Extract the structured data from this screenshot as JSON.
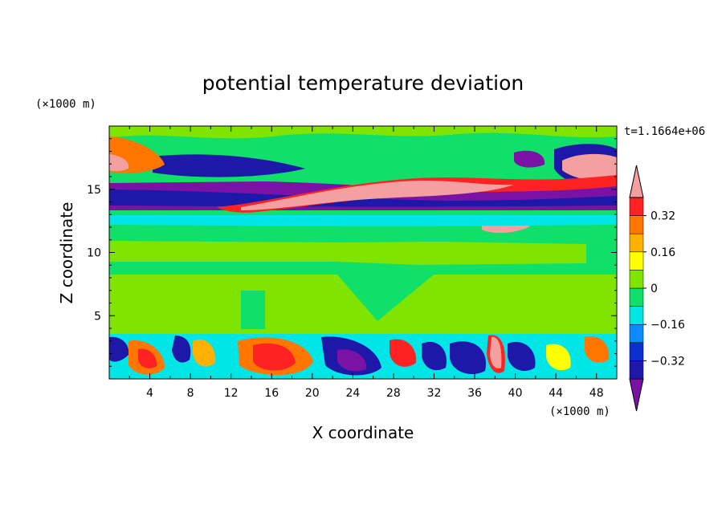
{
  "chart_data": {
    "type": "heatmap",
    "title": "potential temperature deviation",
    "xlabel": "X coordinate",
    "ylabel": "Z coordinate",
    "x_units": "(×1000 m)",
    "y_units": "(×1000 m)",
    "time_label": "t=1.1664e+06",
    "xlim": [
      0,
      50
    ],
    "ylim": [
      0,
      20
    ],
    "x_ticks": [
      4,
      8,
      12,
      16,
      20,
      24,
      28,
      32,
      36,
      40,
      44,
      48
    ],
    "y_ticks": [
      5,
      10,
      15
    ],
    "colorbar": {
      "levels": [
        -0.4,
        -0.32,
        -0.24,
        -0.16,
        -0.08,
        0,
        0.08,
        0.16,
        0.24,
        0.32,
        0.4
      ],
      "labeled_levels": [
        0.32,
        0.16,
        0,
        -0.16,
        -0.32
      ],
      "colors": [
        "#7b12a6",
        "#1e18a8",
        "#0b2fd1",
        "#0b8bff",
        "#00e6e6",
        "#10e06a",
        "#7ee400",
        "#ffff00",
        "#ffb000",
        "#ff7700",
        "#ff2222",
        "#f4a0a0"
      ]
    }
  }
}
